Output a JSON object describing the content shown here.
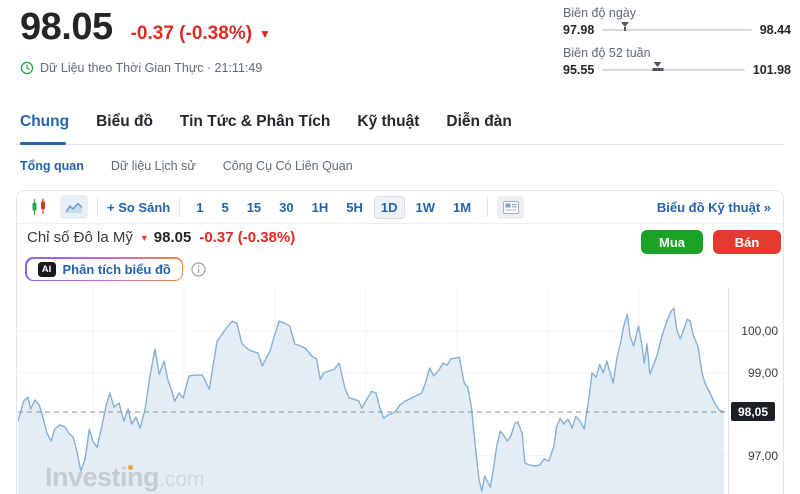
{
  "header": {
    "price": "98.05",
    "change": "-0.37 (-0.38%)",
    "down_arrow": "▼",
    "realtime_text": "Dữ Liệu theo Thời Gian Thực · 21:11:49",
    "day_range": {
      "label": "Biên độ ngày",
      "low": "97.98",
      "high": "98.44",
      "marker_pos": 0.152
    },
    "week52_range": {
      "label": "Biên độ 52 tuần",
      "low": "95.55",
      "high": "101.98",
      "marker_pos": 0.389
    }
  },
  "tabs": {
    "items": [
      {
        "label": "Chung",
        "active": true
      },
      {
        "label": "Biểu đồ",
        "active": false
      },
      {
        "label": "Tin Tức & Phân Tích",
        "active": false
      },
      {
        "label": "Kỹ thuật",
        "active": false
      },
      {
        "label": "Diễn đàn",
        "active": false
      }
    ],
    "subtabs": [
      {
        "label": "Tổng quan",
        "active": true
      },
      {
        "label": "Dữ liệu Lịch sử",
        "active": false
      },
      {
        "label": "Công Cụ Có Liên Quan",
        "active": false
      }
    ]
  },
  "toolbar": {
    "compare_label": "+ So Sánh",
    "intervals": [
      "1",
      "5",
      "15",
      "30",
      "1H",
      "5H",
      "1D",
      "1W",
      "1M"
    ],
    "selected_interval": "1D",
    "tech_chart_label": "Biểu đồ Kỹ thuật »"
  },
  "instrument": {
    "name": "Chỉ số Đô la Mỹ",
    "down_arrow": "▼",
    "price": "98.05",
    "change": "-0.37 (-0.38%)",
    "buy_label": "Mua",
    "sell_label": "Bán",
    "ai_badge": "AI",
    "ai_label": "Phân tích biểu đồ"
  },
  "watermark": {
    "main": "Investing",
    "ext": ".com"
  },
  "colors": {
    "accent_blue": "#2563ab",
    "negative_red": "#dc2b22",
    "buy_green": "#1aa326",
    "sell_red": "#e43b30",
    "line_blue": "#85b0d5",
    "area_fill": "#e4edf5",
    "badge_bg": "#1c2026",
    "clock_green": "#22a14b"
  },
  "chart_data": {
    "type": "area",
    "title": "Chỉ số Đô la Mỹ (US Dollar Index) — 1D",
    "current_price": 98.05,
    "current_price_label": "98,05",
    "ylim": [
      96.05,
      101.04
    ],
    "grid_prices": [
      100,
      99,
      98,
      97
    ],
    "axis_ticks": [
      {
        "label": "100,00",
        "price": 100
      },
      {
        "label": "99,00",
        "price": 99
      },
      {
        "label": "97,00",
        "price": 97
      }
    ],
    "legend": "none",
    "points": [
      [
        0.0,
        97.83
      ],
      [
        0.008,
        98.31
      ],
      [
        0.014,
        98.41
      ],
      [
        0.018,
        98.12
      ],
      [
        0.024,
        98.34
      ],
      [
        0.03,
        98.22
      ],
      [
        0.035,
        97.95
      ],
      [
        0.041,
        97.54
      ],
      [
        0.047,
        97.35
      ],
      [
        0.052,
        97.64
      ],
      [
        0.059,
        97.74
      ],
      [
        0.067,
        97.69
      ],
      [
        0.072,
        97.54
      ],
      [
        0.078,
        97.45
      ],
      [
        0.084,
        97.06
      ],
      [
        0.089,
        96.63
      ],
      [
        0.095,
        96.92
      ],
      [
        0.101,
        97.64
      ],
      [
        0.106,
        97.35
      ],
      [
        0.112,
        97.2
      ],
      [
        0.119,
        97.73
      ],
      [
        0.125,
        98.22
      ],
      [
        0.13,
        98.51
      ],
      [
        0.136,
        98.17
      ],
      [
        0.143,
        98.27
      ],
      [
        0.15,
        97.83
      ],
      [
        0.156,
        98.12
      ],
      [
        0.161,
        97.76
      ],
      [
        0.167,
        97.93
      ],
      [
        0.173,
        97.66
      ],
      [
        0.18,
        98.12
      ],
      [
        0.187,
        98.92
      ],
      [
        0.194,
        99.57
      ],
      [
        0.2,
        98.96
      ],
      [
        0.207,
        99.28
      ],
      [
        0.212,
        98.84
      ],
      [
        0.218,
        98.55
      ],
      [
        0.222,
        98.31
      ],
      [
        0.228,
        98.51
      ],
      [
        0.234,
        98.39
      ],
      [
        0.242,
        98.92
      ],
      [
        0.251,
        98.94
      ],
      [
        0.261,
        98.94
      ],
      [
        0.271,
        98.6
      ],
      [
        0.282,
        99.76
      ],
      [
        0.292,
        100.0
      ],
      [
        0.303,
        100.24
      ],
      [
        0.31,
        100.19
      ],
      [
        0.317,
        99.71
      ],
      [
        0.324,
        99.59
      ],
      [
        0.331,
        99.52
      ],
      [
        0.34,
        99.47
      ],
      [
        0.346,
        99.16
      ],
      [
        0.351,
        99.33
      ],
      [
        0.357,
        99.52
      ],
      [
        0.363,
        99.88
      ],
      [
        0.37,
        100.24
      ],
      [
        0.378,
        100.19
      ],
      [
        0.385,
        100.12
      ],
      [
        0.392,
        99.69
      ],
      [
        0.401,
        99.64
      ],
      [
        0.407,
        99.59
      ],
      [
        0.416,
        99.4
      ],
      [
        0.423,
        99.33
      ],
      [
        0.428,
        98.84
      ],
      [
        0.433,
        98.99
      ],
      [
        0.44,
        99.04
      ],
      [
        0.448,
        99.08
      ],
      [
        0.455,
        99.23
      ],
      [
        0.463,
        98.63
      ],
      [
        0.469,
        98.39
      ],
      [
        0.476,
        98.36
      ],
      [
        0.483,
        98.31
      ],
      [
        0.487,
        98.14
      ],
      [
        0.494,
        98.36
      ],
      [
        0.501,
        98.55
      ],
      [
        0.507,
        98.51
      ],
      [
        0.513,
        98.12
      ],
      [
        0.518,
        97.9
      ],
      [
        0.524,
        97.98
      ],
      [
        0.53,
        98.02
      ],
      [
        0.535,
        98.07
      ],
      [
        0.541,
        98.22
      ],
      [
        0.548,
        98.31
      ],
      [
        0.554,
        98.36
      ],
      [
        0.56,
        98.41
      ],
      [
        0.572,
        98.51
      ],
      [
        0.578,
        98.8
      ],
      [
        0.583,
        99.11
      ],
      [
        0.589,
        98.92
      ],
      [
        0.596,
        99.06
      ],
      [
        0.602,
        99.23
      ],
      [
        0.608,
        99.18
      ],
      [
        0.613,
        99.33
      ],
      [
        0.619,
        99.35
      ],
      [
        0.625,
        99.37
      ],
      [
        0.632,
        98.75
      ],
      [
        0.637,
        98.65
      ],
      [
        0.642,
        98.19
      ],
      [
        0.647,
        97.35
      ],
      [
        0.653,
        96.43
      ],
      [
        0.657,
        96.14
      ],
      [
        0.661,
        96.51
      ],
      [
        0.666,
        96.34
      ],
      [
        0.669,
        96.24
      ],
      [
        0.673,
        96.63
      ],
      [
        0.678,
        97.23
      ],
      [
        0.683,
        97.59
      ],
      [
        0.688,
        97.49
      ],
      [
        0.693,
        97.35
      ],
      [
        0.698,
        97.47
      ],
      [
        0.704,
        97.78
      ],
      [
        0.708,
        97.81
      ],
      [
        0.714,
        97.54
      ],
      [
        0.718,
        96.82
      ],
      [
        0.725,
        96.77
      ],
      [
        0.732,
        96.75
      ],
      [
        0.739,
        96.77
      ],
      [
        0.745,
        96.92
      ],
      [
        0.752,
        96.87
      ],
      [
        0.759,
        97.23
      ],
      [
        0.763,
        97.71
      ],
      [
        0.768,
        97.9
      ],
      [
        0.773,
        97.76
      ],
      [
        0.779,
        97.88
      ],
      [
        0.785,
        97.66
      ],
      [
        0.79,
        97.95
      ],
      [
        0.796,
        97.83
      ],
      [
        0.802,
        97.64
      ],
      [
        0.809,
        98.43
      ],
      [
        0.813,
        98.99
      ],
      [
        0.819,
        98.89
      ],
      [
        0.824,
        99.2
      ],
      [
        0.829,
        98.99
      ],
      [
        0.834,
        99.28
      ],
      [
        0.838,
        99.04
      ],
      [
        0.843,
        98.75
      ],
      [
        0.848,
        99.33
      ],
      [
        0.854,
        99.76
      ],
      [
        0.858,
        100.12
      ],
      [
        0.863,
        100.41
      ],
      [
        0.867,
        99.88
      ],
      [
        0.872,
        99.64
      ],
      [
        0.877,
        100.0
      ],
      [
        0.879,
        100.12
      ],
      [
        0.884,
        99.64
      ],
      [
        0.887,
        99.23
      ],
      [
        0.891,
        99.69
      ],
      [
        0.895,
        98.96
      ],
      [
        0.901,
        99.23
      ],
      [
        0.905,
        99.4
      ],
      [
        0.912,
        99.88
      ],
      [
        0.919,
        100.24
      ],
      [
        0.925,
        100.48
      ],
      [
        0.929,
        100.55
      ],
      [
        0.933,
        100.05
      ],
      [
        0.938,
        99.81
      ],
      [
        0.943,
        100.05
      ],
      [
        0.948,
        100.29
      ],
      [
        0.952,
        100.24
      ],
      [
        0.957,
        99.88
      ],
      [
        0.963,
        99.64
      ],
      [
        0.969,
        98.99
      ],
      [
        0.973,
        98.75
      ],
      [
        0.979,
        98.55
      ],
      [
        0.986,
        98.29
      ],
      [
        0.993,
        98.1
      ],
      [
        1.0,
        98.05
      ]
    ]
  }
}
